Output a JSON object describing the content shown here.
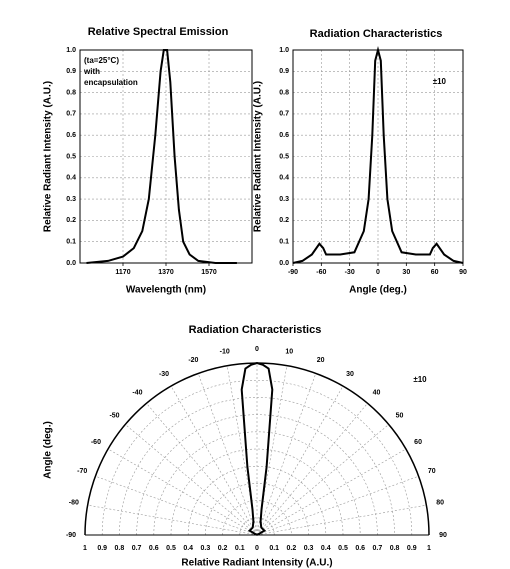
{
  "chart_data": [
    {
      "type": "line",
      "title": "Relative Spectral Emission",
      "xlabel": "Wavelength (nm)",
      "ylabel": "Relative Radiant Intensity (A.U.)",
      "annotation": [
        "(ta=25°C)",
        "with",
        "encapsulation"
      ],
      "x": [
        1000,
        1100,
        1170,
        1220,
        1260,
        1290,
        1320,
        1345,
        1360,
        1375,
        1390,
        1410,
        1430,
        1450,
        1480,
        1520,
        1600,
        1700
      ],
      "values": [
        0,
        0.01,
        0.03,
        0.07,
        0.15,
        0.3,
        0.6,
        0.9,
        1.0,
        1.0,
        0.85,
        0.5,
        0.25,
        0.1,
        0.04,
        0.01,
        0,
        0
      ],
      "color": "#000000",
      "xlim": [
        970,
        1770
      ],
      "xticks": [
        1170,
        1370,
        1570
      ],
      "ylim": [
        0,
        1
      ],
      "yticks": [
        {
          "value": 0,
          "label": "0.0"
        },
        0.1,
        0.2,
        0.3,
        0.4,
        0.5,
        0.6,
        0.7,
        0.8,
        0.9,
        {
          "value": 1,
          "label": "1.0"
        }
      ],
      "grid": true
    },
    {
      "type": "line",
      "title": "Radiation Characteristics",
      "xlabel": "Angle (deg.)",
      "ylabel": "Relative Radiant Intensity (A.U.)",
      "annotation": [
        "±10"
      ],
      "x": [
        -90,
        -80,
        -70,
        -62,
        -58,
        -55,
        -40,
        -25,
        -15,
        -10,
        -6,
        -3,
        0,
        3,
        6,
        10,
        15,
        25,
        40,
        55,
        58,
        62,
        70,
        80,
        90
      ],
      "values": [
        0,
        0.01,
        0.04,
        0.09,
        0.07,
        0.04,
        0.04,
        0.05,
        0.15,
        0.3,
        0.6,
        0.95,
        1.0,
        0.95,
        0.6,
        0.3,
        0.15,
        0.05,
        0.04,
        0.04,
        0.07,
        0.09,
        0.04,
        0.01,
        0
      ],
      "color": "#000000",
      "xlim": [
        -90,
        90
      ],
      "xticks": [
        -90,
        -60,
        -30,
        0,
        30,
        60,
        90
      ],
      "ylim": [
        0,
        1
      ],
      "yticks": [
        {
          "value": 0,
          "label": "0.0"
        },
        0.1,
        0.2,
        0.3,
        0.4,
        0.5,
        0.6,
        0.7,
        0.8,
        0.9,
        {
          "value": 1,
          "label": "1.0"
        }
      ],
      "grid": true
    },
    {
      "type": "polar",
      "title": "Radiation Characteristics",
      "xlabel": "Relative Radiant Intensity (A.U.)",
      "ylabel": "Angle (deg.)",
      "annotation": [
        "±10"
      ],
      "x": [
        -90,
        -60,
        -30,
        -15,
        -10,
        -8,
        -6,
        -4,
        -2,
        0,
        2,
        4,
        6,
        8,
        10,
        15,
        30,
        60,
        90
      ],
      "values": [
        0,
        0.05,
        0.05,
        0.08,
        0.15,
        0.4,
        0.85,
        0.97,
        0.99,
        1.0,
        0.99,
        0.97,
        0.85,
        0.4,
        0.15,
        0.08,
        0.05,
        0.05,
        0
      ],
      "color": "#000000",
      "angle_ticks": [
        -90,
        -80,
        -70,
        -60,
        -50,
        -40,
        -30,
        -20,
        -10,
        0,
        10,
        20,
        30,
        40,
        50,
        60,
        70,
        80,
        90
      ],
      "xticks": [
        {
          "value": -1,
          "label": "1"
        },
        {
          "value": -0.9,
          "label": "0.9"
        },
        {
          "value": -0.8,
          "label": "0.8"
        },
        {
          "value": -0.7,
          "label": "0.7"
        },
        {
          "value": -0.6,
          "label": "0.6"
        },
        {
          "value": -0.5,
          "label": "0.5"
        },
        {
          "value": -0.4,
          "label": "0.4"
        },
        {
          "value": -0.3,
          "label": "0.3"
        },
        {
          "value": -0.2,
          "label": "0.2"
        },
        {
          "value": -0.1,
          "label": "0.1"
        },
        0,
        0.1,
        0.2,
        0.3,
        0.4,
        0.5,
        0.6,
        0.7,
        0.8,
        0.9,
        1
      ],
      "rlim": [
        0,
        1
      ],
      "grid": true
    }
  ]
}
